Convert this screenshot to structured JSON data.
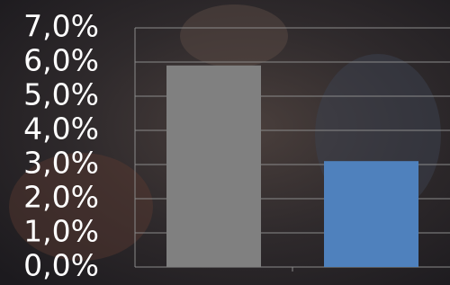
{
  "chart_data": {
    "type": "bar",
    "categories": [
      null,
      null
    ],
    "values": [
      5.9,
      3.1
    ],
    "colors": [
      "#808080",
      "#4f81bd"
    ],
    "ylim": [
      0,
      7
    ],
    "yticks": [
      {
        "value": 0,
        "label": "0,0%"
      },
      {
        "value": 1,
        "label": "1,0%"
      },
      {
        "value": 2,
        "label": "2,0%"
      },
      {
        "value": 3,
        "label": "3,0%"
      },
      {
        "value": 4,
        "label": "4,0%"
      },
      {
        "value": 5,
        "label": "5,0%"
      },
      {
        "value": 6,
        "label": "6,0%"
      },
      {
        "value": 7,
        "label": "7,0%"
      }
    ],
    "grid": true
  }
}
